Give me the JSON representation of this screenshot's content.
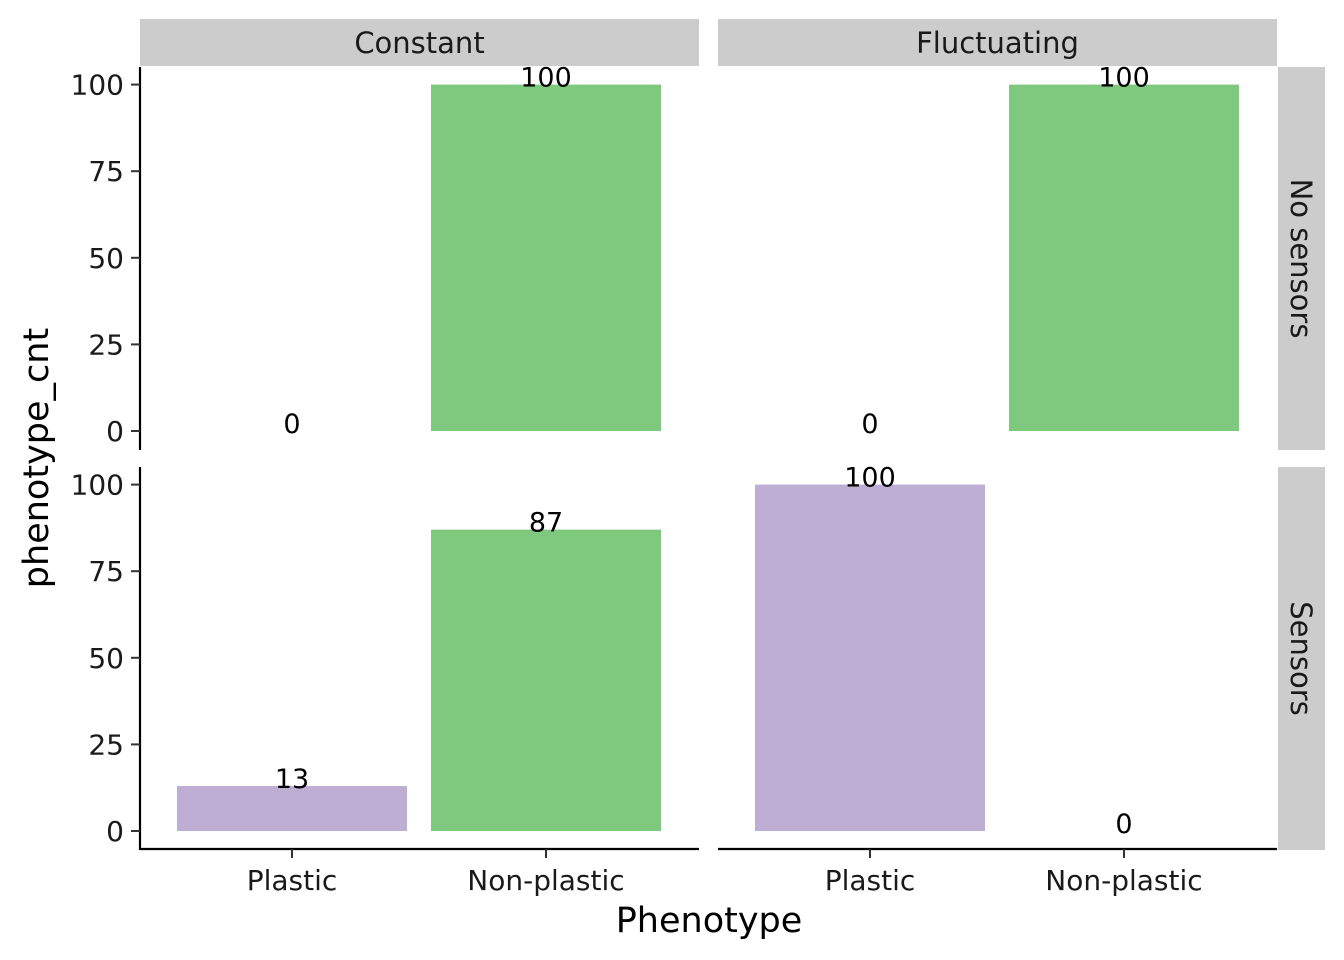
{
  "chart_data": {
    "type": "bar",
    "xlabel": "Phenotype",
    "ylabel": "phenotype_cnt",
    "categories": [
      "Plastic",
      "Non-plastic"
    ],
    "col_facets": [
      "Constant",
      "Fluctuating"
    ],
    "row_facets": [
      "No sensors",
      "Sensors"
    ],
    "ylim": [
      0,
      100
    ],
    "yticks": [
      0,
      25,
      50,
      75,
      100
    ],
    "grid": false,
    "legend": "none",
    "colors": {
      "Plastic": "#beaed4",
      "Non-plastic": "#7fc97f",
      "strip": "#cccccc"
    },
    "panels": [
      {
        "col": "Constant",
        "row": "No sensors",
        "values": [
          0,
          100
        ],
        "labels": [
          "0",
          "100"
        ]
      },
      {
        "col": "Fluctuating",
        "row": "No sensors",
        "values": [
          0,
          100
        ],
        "labels": [
          "0",
          "100"
        ]
      },
      {
        "col": "Constant",
        "row": "Sensors",
        "values": [
          13,
          87
        ],
        "labels": [
          "13",
          "87"
        ]
      },
      {
        "col": "Fluctuating",
        "row": "Sensors",
        "values": [
          100,
          0
        ],
        "labels": [
          "100",
          "0"
        ]
      }
    ]
  }
}
